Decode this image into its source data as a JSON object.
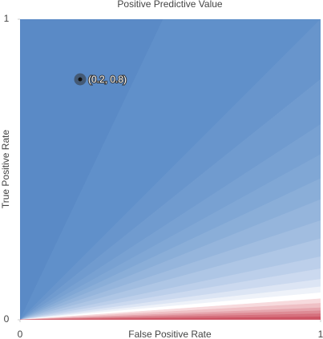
{
  "chart_data": {
    "type": "contour",
    "title": "Positive Predictive Value",
    "x_label": "False Positive Rate",
    "y_label": "True Positive Rate",
    "xlim": [
      0,
      1
    ],
    "ylim": [
      0,
      1
    ],
    "xticks": [
      0,
      1
    ],
    "yticks": [
      0,
      1
    ],
    "contour_slopes": [
      2.1,
      1.0,
      0.8,
      0.65,
      0.55,
      0.47,
      0.4,
      0.33,
      0.27,
      0.21,
      0.17,
      0.135,
      0.11,
      0.09,
      0.07,
      0.055,
      0.04,
      0.03,
      0.02,
      0.01
    ],
    "contour_colors": [
      "#5a8ac6",
      "#6090ca",
      "#6895cc",
      "#709bcf",
      "#78a1d2",
      "#80a7d5",
      "#8aaed8",
      "#95b5dc",
      "#a1bde0",
      "#aec6e5",
      "#bccfea",
      "#cbd9ef",
      "#dce5f4",
      "#eef2f9",
      "#ffffff",
      "#f7dadd",
      "#efc0c5",
      "#e6a5ad",
      "#de8b95",
      "#d6707d",
      "#cd5666"
    ],
    "points": [
      {
        "x": 0.2,
        "y": 0.8,
        "label": "(0.2, 0.8)"
      }
    ]
  }
}
